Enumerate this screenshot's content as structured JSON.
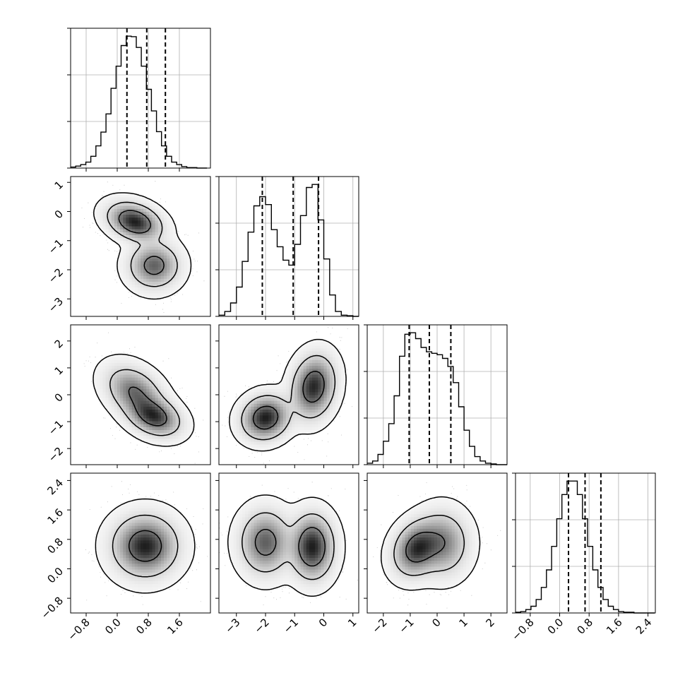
{
  "chart_data": {
    "type": "corner",
    "title": "",
    "grid": true,
    "n_params": 4,
    "params": [
      {
        "range": [
          -1.2,
          2.4
        ],
        "ticks": [
          -0.8,
          0.0,
          0.8,
          1.6
        ],
        "tick_labels": [
          "−0.8",
          "0.0",
          "0.8",
          "1.6"
        ],
        "quantiles": [
          0.25,
          0.76,
          1.24
        ],
        "hist": {
          "bin_start": -1.2,
          "bin_width": 0.13,
          "counts": [
            2,
            4,
            7,
            12,
            24,
            45,
            73,
            110,
            162,
            207,
            249,
            268,
            267,
            245,
            207,
            160,
            116,
            74,
            45,
            24,
            12,
            7,
            3,
            1,
            1,
            0,
            0
          ]
        }
      },
      {
        "range": [
          -3.6,
          1.2
        ],
        "ticks": [
          -3,
          -2,
          -1,
          0,
          1
        ],
        "tick_labels": [
          "−3",
          "−2",
          "−1",
          "0",
          "1"
        ],
        "quantiles": [
          -2.11,
          -1.05,
          -0.18
        ],
        "hist": {
          "bin_start": -3.6,
          "bin_width": 0.2,
          "counts": [
            2,
            8,
            22,
            48,
            90,
            138,
            181,
            196,
            183,
            142,
            114,
            92,
            84,
            118,
            165,
            211,
            216,
            158,
            94,
            35,
            8,
            2,
            1,
            0
          ]
        }
      },
      {
        "range": [
          -2.6,
          2.6
        ],
        "ticks": [
          -2,
          -1,
          0,
          1,
          2
        ],
        "tick_labels": [
          "−2",
          "−1",
          "0",
          "1",
          "2"
        ],
        "quantiles": [
          -1.04,
          -0.29,
          0.51
        ],
        "hist": {
          "bin_start": -2.6,
          "bin_width": 0.2,
          "counts": [
            2,
            5,
            14,
            32,
            56,
            94,
            148,
            178,
            180,
            172,
            160,
            154,
            152,
            150,
            145,
            134,
            112,
            79,
            47,
            25,
            11,
            5,
            2,
            1,
            0,
            0
          ]
        }
      },
      {
        "range": [
          -1.2,
          2.6
        ],
        "ticks": [
          -0.8,
          0.0,
          0.8,
          1.6,
          2.4
        ],
        "tick_labels": [
          "−0.8",
          "0.0",
          "0.8",
          "1.6",
          "2.4"
        ],
        "quantiles": [
          0.24,
          0.69,
          1.12
        ],
        "hist": {
          "bin_start": -1.2,
          "bin_width": 0.14,
          "counts": [
            1,
            2,
            5,
            10,
            20,
            38,
            64,
            99,
            140,
            176,
            196,
            196,
            176,
            140,
            99,
            64,
            38,
            20,
            10,
            5,
            2,
            1,
            1,
            0,
            0,
            0,
            0
          ]
        }
      }
    ],
    "pairs": [
      {
        "x_param": 0,
        "y_param": 1,
        "modes": [
          {
            "x": 0.45,
            "y": -0.35,
            "sx": 0.35,
            "sy": 0.33,
            "rho": -0.3,
            "w": 0.55
          },
          {
            "x": 0.95,
            "y": -1.85,
            "sx": 0.33,
            "sy": 0.4,
            "rho": 0.0,
            "w": 0.45
          }
        ]
      },
      {
        "x_param": 0,
        "y_param": 2,
        "modes": [
          {
            "x": 0.45,
            "y": 0.1,
            "sx": 0.38,
            "sy": 0.5,
            "rho": -0.35,
            "w": 0.5
          },
          {
            "x": 0.95,
            "y": -0.8,
            "sx": 0.35,
            "sy": 0.38,
            "rho": -0.3,
            "w": 0.5
          }
        ]
      },
      {
        "x_param": 1,
        "y_param": 2,
        "modes": [
          {
            "x": -2.0,
            "y": -0.85,
            "sx": 0.42,
            "sy": 0.42,
            "rho": 0.1,
            "w": 0.45
          },
          {
            "x": -0.35,
            "y": 0.3,
            "sx": 0.38,
            "sy": 0.6,
            "rho": 0.15,
            "w": 0.55
          }
        ]
      },
      {
        "x_param": 0,
        "y_param": 3,
        "modes": [
          {
            "x": 0.72,
            "y": 0.62,
            "sx": 0.42,
            "sy": 0.42,
            "rho": 0.0,
            "w": 1.0
          }
        ]
      },
      {
        "x_param": 1,
        "y_param": 3,
        "modes": [
          {
            "x": -2.0,
            "y": 0.72,
            "sx": 0.45,
            "sy": 0.45,
            "rho": 0.0,
            "w": 0.45
          },
          {
            "x": -0.4,
            "y": 0.6,
            "sx": 0.38,
            "sy": 0.45,
            "rho": 0.0,
            "w": 0.55
          }
        ]
      },
      {
        "x_param": 2,
        "y_param": 3,
        "modes": [
          {
            "x": -0.75,
            "y": 0.55,
            "sx": 0.45,
            "sy": 0.38,
            "rho": 0.2,
            "w": 0.55
          },
          {
            "x": 0.2,
            "y": 0.7,
            "sx": 0.5,
            "sy": 0.45,
            "rho": 0.0,
            "w": 0.45
          }
        ]
      }
    ],
    "contour_levels": [
      0.39,
      0.86,
      0.99
    ],
    "colors": {
      "density": "#000000",
      "scatter": "#808080",
      "grid": "#b0b0b0"
    }
  }
}
